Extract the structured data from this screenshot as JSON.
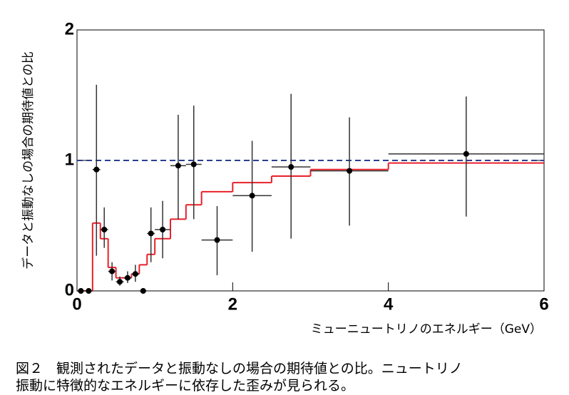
{
  "chart_data": {
    "type": "errorbar-step",
    "y_label": "データと振動なしの場合の期待値との比",
    "x_label": "ミューニュートリノのエネルギー（GeV）",
    "xlim": [
      0,
      6
    ],
    "ylim": [
      0,
      2
    ],
    "xticks": [
      0,
      2,
      4,
      6
    ],
    "yticks": [
      0,
      1,
      2
    ],
    "points": {
      "color": "#000000",
      "x": [
        0.05,
        0.15,
        0.25,
        0.35,
        0.45,
        0.55,
        0.65,
        0.75,
        0.85,
        0.95,
        1.1,
        1.3,
        1.5,
        1.8,
        2.25,
        2.75,
        3.5,
        5
      ],
      "y": [
        0,
        0,
        0.93,
        0.47,
        0.15,
        0.07,
        0.1,
        0.13,
        0,
        0.44,
        0.47,
        0.96,
        0.97,
        0.39,
        0.73,
        0.95,
        0.92,
        1.05
      ],
      "y_low": [
        0,
        0,
        0.27,
        0.33,
        0.08,
        0.04,
        0.06,
        0.07,
        0,
        0.22,
        0.25,
        0.55,
        0.55,
        0.12,
        0.3,
        0.4,
        0.5,
        0.57
      ],
      "y_high": [
        0,
        0,
        1.58,
        0.64,
        0.22,
        0.11,
        0.15,
        0.2,
        0,
        0.64,
        0.69,
        1.35,
        1.42,
        0.65,
        1.15,
        1.51,
        1.33,
        1.49
      ],
      "xerr": [
        0.05,
        0.05,
        0.05,
        0.05,
        0.05,
        0.05,
        0.05,
        0.05,
        0.05,
        0.05,
        0.1,
        0.1,
        0.1,
        0.2,
        0.25,
        0.25,
        0.5,
        1
      ]
    },
    "step": {
      "color": "#e8202a",
      "edges": [
        0,
        0.2,
        0.3,
        0.4,
        0.5,
        0.6,
        0.7,
        0.8,
        0.9,
        1.0,
        1.2,
        1.4,
        1.6,
        2.0,
        2.5,
        3.0,
        4.0,
        6.0
      ],
      "values": [
        0,
        0.52,
        0.4,
        0.18,
        0.1,
        0.1,
        0.13,
        0.2,
        0.28,
        0.4,
        0.55,
        0.66,
        0.76,
        0.83,
        0.88,
        0.93,
        0.98
      ]
    },
    "reference_line": {
      "value": 1,
      "color": "#2a3f8f",
      "style": "dashed"
    }
  },
  "caption": [
    "図２　観測されたデータと振動なしの場合の期待値との比。ニュートリノ",
    "振動に特徴的なエネルギーに依存した歪みが見られる。"
  ]
}
